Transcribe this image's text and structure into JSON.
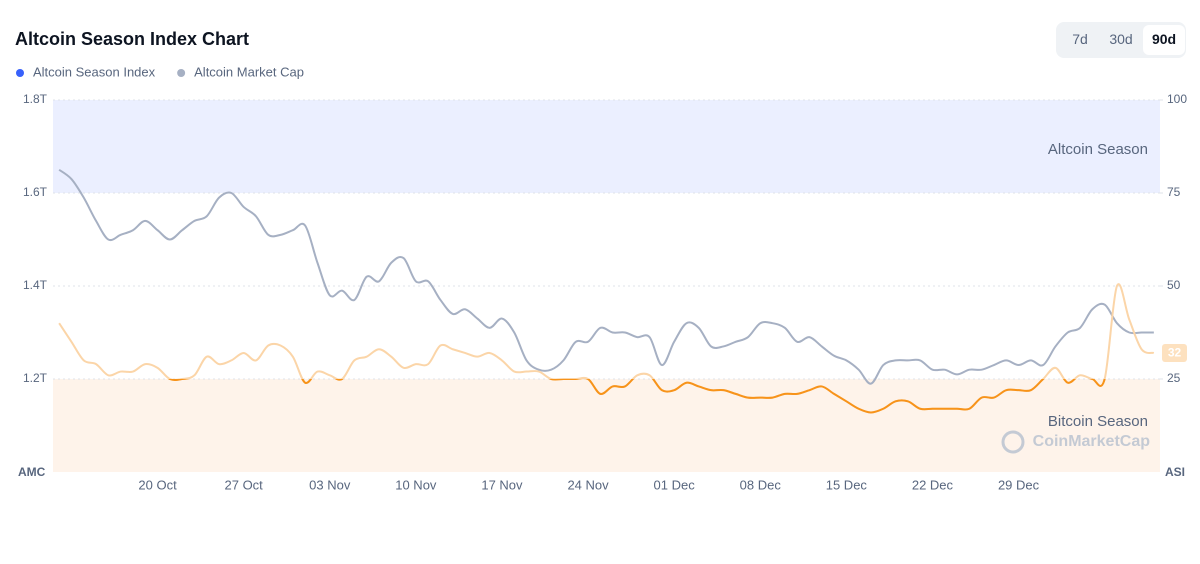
{
  "chart_data": {
    "type": "line",
    "title": "Altcoin Season Index Chart",
    "yaxis_label": "AMC",
    "y2axis_label": "ASI",
    "ylim": [
      1.0,
      1.8
    ],
    "yticks": [
      {
        "value": 1.2,
        "label": "1.2T"
      },
      {
        "value": 1.4,
        "label": "1.4T"
      },
      {
        "value": 1.6,
        "label": "1.6T"
      },
      {
        "value": 1.8,
        "label": "1.8T"
      }
    ],
    "y2lim": [
      0,
      100
    ],
    "y2ticks": [
      25,
      50,
      75,
      100
    ],
    "grid": true,
    "bands": [
      {
        "name": "Altcoin Season",
        "from": 75,
        "to": 100,
        "color": "#ebefff"
      },
      {
        "name": "Bitcoin Season",
        "from": 0,
        "to": 25,
        "color": "#fef3ea"
      }
    ],
    "watermark": "CoinMarketCap",
    "categories": [
      null,
      null,
      null,
      null,
      null,
      null,
      null,
      null,
      "20 Oct",
      null,
      null,
      null,
      null,
      null,
      null,
      "27 Oct",
      null,
      null,
      null,
      null,
      null,
      null,
      "03 Nov",
      null,
      null,
      null,
      null,
      null,
      null,
      "10 Nov",
      null,
      null,
      null,
      null,
      null,
      null,
      "17 Nov",
      null,
      null,
      null,
      null,
      null,
      null,
      "24 Nov",
      null,
      null,
      null,
      null,
      null,
      null,
      "01 Dec",
      null,
      null,
      null,
      null,
      null,
      null,
      "08 Dec",
      null,
      null,
      null,
      null,
      null,
      null,
      "15 Dec",
      null,
      null,
      null,
      null,
      null,
      null,
      "22 Dec",
      null,
      null,
      null,
      null,
      null,
      null,
      "29 Dec",
      null,
      null,
      null,
      null,
      null,
      null,
      null,
      null,
      null,
      null,
      null
    ],
    "series": [
      {
        "name": "Altcoin Season Index",
        "color": "#3861fb",
        "axis": "y2",
        "line_color": "#f7931a",
        "line_color_faded": "#fbd5a8",
        "values": [
          40,
          35,
          30,
          29,
          26,
          27,
          27,
          29,
          28,
          25,
          25,
          26,
          31,
          29,
          30,
          32,
          30,
          34,
          34,
          31,
          24,
          27,
          26,
          25,
          30,
          31,
          33,
          31,
          28,
          29,
          29,
          34,
          33,
          32,
          31,
          32,
          30,
          27,
          27,
          27,
          25,
          25,
          25,
          25,
          21,
          23,
          23,
          26,
          26,
          22,
          22,
          24,
          23,
          22,
          22,
          21,
          20,
          20,
          20,
          21,
          21,
          22,
          23,
          21,
          19,
          17,
          16,
          17,
          19,
          19,
          17,
          17,
          17,
          17,
          17,
          20,
          20,
          22,
          22,
          22,
          25,
          28,
          24,
          26,
          25,
          25,
          50,
          41,
          33,
          32
        ]
      },
      {
        "name": "Altcoin Market Cap",
        "color": "#a6b0c3",
        "values": [
          1.65,
          1.63,
          1.59,
          1.54,
          1.5,
          1.51,
          1.52,
          1.54,
          1.52,
          1.5,
          1.52,
          1.54,
          1.55,
          1.59,
          1.6,
          1.57,
          1.55,
          1.51,
          1.51,
          1.52,
          1.53,
          1.45,
          1.38,
          1.39,
          1.37,
          1.42,
          1.41,
          1.45,
          1.46,
          1.41,
          1.41,
          1.37,
          1.34,
          1.35,
          1.33,
          1.31,
          1.33,
          1.3,
          1.24,
          1.22,
          1.22,
          1.24,
          1.28,
          1.28,
          1.31,
          1.3,
          1.3,
          1.29,
          1.29,
          1.23,
          1.28,
          1.32,
          1.31,
          1.27,
          1.27,
          1.28,
          1.29,
          1.32,
          1.32,
          1.31,
          1.28,
          1.29,
          1.27,
          1.25,
          1.24,
          1.22,
          1.19,
          1.23,
          1.24,
          1.24,
          1.24,
          1.22,
          1.22,
          1.21,
          1.22,
          1.22,
          1.23,
          1.24,
          1.23,
          1.24,
          1.23,
          1.27,
          1.3,
          1.31,
          1.35,
          1.36,
          1.32,
          1.3,
          1.3,
          1.3
        ]
      }
    ]
  },
  "controls": {
    "range_options": [
      "7d",
      "30d",
      "90d"
    ],
    "selected": 2
  }
}
